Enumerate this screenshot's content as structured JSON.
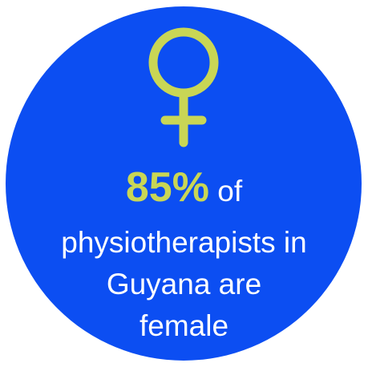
{
  "infographic": {
    "icon": "female-symbol-icon",
    "colors": {
      "circle": "#0c4ef2",
      "accent": "#c9d655",
      "text": "#ffffff",
      "background": "#ffffff"
    },
    "stat": {
      "value": "85%",
      "of": "of",
      "line2": "physiotherapists in",
      "line3": "Guyana are",
      "line4": "female"
    }
  }
}
